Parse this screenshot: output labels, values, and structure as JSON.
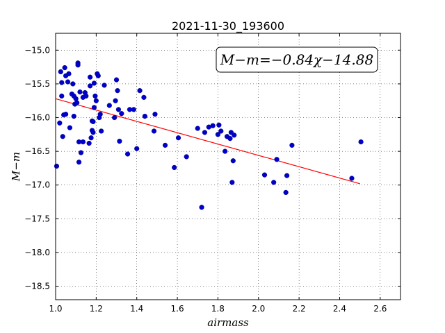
{
  "chart_data": {
    "type": "scatter",
    "title": "2021-11-30_193600",
    "xlabel": "airmass",
    "ylabel": "M−m",
    "xlim": [
      1.0,
      2.7
    ],
    "ylim": [
      -18.7,
      -14.75
    ],
    "y_inverted": true,
    "grid": true,
    "grid_style": "dotted",
    "xticks": [
      1.0,
      1.2,
      1.4,
      1.6,
      1.8,
      2.0,
      2.2,
      2.4,
      2.6
    ],
    "xtick_labels": [
      "1.0",
      "1.2",
      "1.4",
      "1.6",
      "1.8",
      "2.0",
      "2.2",
      "2.4",
      "2.6"
    ],
    "yticks": [
      -15.0,
      -15.5,
      -16.0,
      -16.5,
      -17.0,
      -17.5,
      -18.0,
      -18.5
    ],
    "ytick_labels": [
      "−15.0",
      "−15.5",
      "−16.0",
      "−16.5",
      "−17.0",
      "−17.5",
      "−18.0",
      "−18.5"
    ],
    "annotation": "M−m=−0.84χ−14.88",
    "fit": {
      "slope": -0.84,
      "intercept": -14.88,
      "x_range": [
        1.0,
        2.5
      ],
      "color": "#ff0000"
    },
    "point_color": "#0000cc",
    "points": [
      [
        1.005,
        -16.72
      ],
      [
        1.02,
        -16.08
      ],
      [
        1.025,
        -15.32
      ],
      [
        1.03,
        -15.68
      ],
      [
        1.03,
        -15.48
      ],
      [
        1.035,
        -16.28
      ],
      [
        1.04,
        -15.96
      ],
      [
        1.045,
        -15.26
      ],
      [
        1.05,
        -15.38
      ],
      [
        1.05,
        -15.95
      ],
      [
        1.06,
        -15.47
      ],
      [
        1.065,
        -15.35
      ],
      [
        1.07,
        -16.15
      ],
      [
        1.08,
        -15.65
      ],
      [
        1.085,
        -15.5
      ],
      [
        1.09,
        -15.68
      ],
      [
        1.09,
        -15.98
      ],
      [
        1.095,
        -15.8
      ],
      [
        1.1,
        -15.72
      ],
      [
        1.105,
        -15.78
      ],
      [
        1.11,
        -15.19
      ],
      [
        1.11,
        -15.22
      ],
      [
        1.115,
        -16.66
      ],
      [
        1.115,
        -16.36
      ],
      [
        1.12,
        -15.62
      ],
      [
        1.125,
        -16.52
      ],
      [
        1.135,
        -16.36
      ],
      [
        1.135,
        -15.7
      ],
      [
        1.145,
        -15.63
      ],
      [
        1.15,
        -15.68
      ],
      [
        1.165,
        -16.38
      ],
      [
        1.17,
        -15.4
      ],
      [
        1.17,
        -15.53
      ],
      [
        1.175,
        -16.3
      ],
      [
        1.18,
        -16.05
      ],
      [
        1.18,
        -16.19
      ],
      [
        1.185,
        -16.22
      ],
      [
        1.185,
        -16.06
      ],
      [
        1.19,
        -15.49
      ],
      [
        1.19,
        -15.85
      ],
      [
        1.195,
        -15.68
      ],
      [
        1.2,
        -15.75
      ],
      [
        1.205,
        -15.35
      ],
      [
        1.21,
        -15.38
      ],
      [
        1.215,
        -16.0
      ],
      [
        1.22,
        -15.95
      ],
      [
        1.225,
        -16.2
      ],
      [
        1.24,
        -15.52
      ],
      [
        1.265,
        -15.82
      ],
      [
        1.29,
        -16.0
      ],
      [
        1.295,
        -15.75
      ],
      [
        1.3,
        -15.44
      ],
      [
        1.305,
        -15.6
      ],
      [
        1.31,
        -15.88
      ],
      [
        1.315,
        -16.35
      ],
      [
        1.325,
        -15.94
      ],
      [
        1.355,
        -16.54
      ],
      [
        1.365,
        -15.88
      ],
      [
        1.385,
        -15.88
      ],
      [
        1.4,
        -16.46
      ],
      [
        1.415,
        -15.6
      ],
      [
        1.435,
        -15.7
      ],
      [
        1.44,
        -15.98
      ],
      [
        1.485,
        -16.2
      ],
      [
        1.49,
        -15.95
      ],
      [
        1.54,
        -16.41
      ],
      [
        1.585,
        -16.74
      ],
      [
        1.605,
        -16.3
      ],
      [
        1.645,
        -16.58
      ],
      [
        1.7,
        -16.16
      ],
      [
        1.72,
        -17.33
      ],
      [
        1.735,
        -16.22
      ],
      [
        1.755,
        -16.14
      ],
      [
        1.775,
        -16.12
      ],
      [
        1.8,
        -16.25
      ],
      [
        1.805,
        -16.11
      ],
      [
        1.815,
        -16.2
      ],
      [
        1.835,
        -16.5
      ],
      [
        1.845,
        -16.28
      ],
      [
        1.86,
        -16.31
      ],
      [
        1.865,
        -16.22
      ],
      [
        1.87,
        -16.96
      ],
      [
        1.875,
        -16.64
      ],
      [
        1.88,
        -16.26
      ],
      [
        2.03,
        -16.85
      ],
      [
        2.075,
        -16.96
      ],
      [
        2.09,
        -16.62
      ],
      [
        2.135,
        -17.11
      ],
      [
        2.14,
        -16.86
      ],
      [
        2.165,
        -16.41
      ],
      [
        2.46,
        -16.9
      ],
      [
        2.505,
        -16.36
      ]
    ]
  }
}
